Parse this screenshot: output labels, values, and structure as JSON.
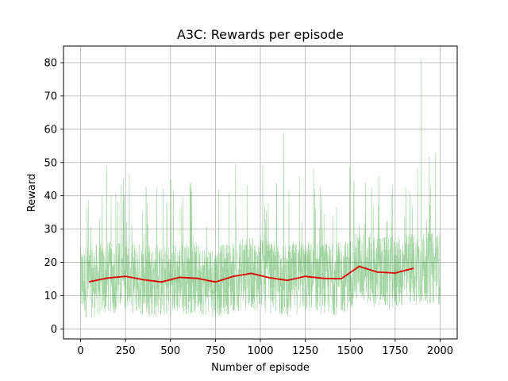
{
  "chart_data": {
    "type": "line",
    "title": "A3C: Rewards per episode",
    "xlabel": "Number of episode",
    "ylabel": "Reward",
    "xlim": [
      -95,
      2095
    ],
    "ylim": [
      -3,
      85
    ],
    "xticks": [
      0,
      250,
      500,
      750,
      1000,
      1250,
      1500,
      1750,
      2000
    ],
    "yticks": [
      0,
      10,
      20,
      30,
      40,
      50,
      60,
      70,
      80
    ],
    "grid": true,
    "legend": "none",
    "series": [
      {
        "style": "raw per-episode rewards (thin translucent green line)",
        "color": "#2ca02c",
        "episodes": [
          0,
          2000
        ],
        "approx_mean": 15.5,
        "approx_min": 2,
        "approx_max": 81,
        "notable_peaks": [
          {
            "x": 1130,
            "y": 59
          },
          {
            "x": 1895,
            "y": 81
          },
          {
            "x": 1940,
            "y": 52
          },
          {
            "x": 1975,
            "y": 53
          }
        ]
      },
      {
        "style": "moving average (solid red line)",
        "color": "#e00000",
        "x": [
          50,
          150,
          250,
          350,
          450,
          550,
          650,
          750,
          850,
          950,
          1050,
          1150,
          1250,
          1350,
          1450,
          1550,
          1650,
          1750,
          1850
        ],
        "values": [
          14.2,
          15.3,
          15.8,
          14.8,
          14.1,
          15.5,
          15.2,
          14.1,
          15.8,
          16.7,
          15.4,
          14.6,
          15.8,
          15.2,
          15.1,
          18.8,
          17.1,
          16.8,
          18.2
        ]
      }
    ]
  }
}
